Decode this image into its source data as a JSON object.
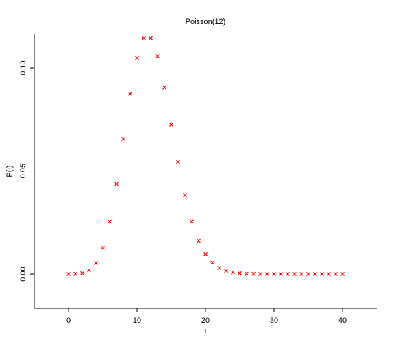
{
  "chart_data": {
    "type": "scatter",
    "title": "Poisson(12)",
    "x_label": "i",
    "y_label": "P(i)",
    "x": [
      0,
      1,
      2,
      3,
      4,
      5,
      6,
      7,
      8,
      9,
      10,
      11,
      12,
      13,
      14,
      15,
      16,
      17,
      18,
      19,
      20,
      21,
      22,
      23,
      24,
      25,
      26,
      27,
      28,
      29,
      30,
      31,
      32,
      33,
      34,
      35,
      36,
      37,
      38,
      39,
      40
    ],
    "values": [
      0.0,
      0.0001,
      0.0004,
      0.0018,
      0.0053,
      0.0127,
      0.0255,
      0.0437,
      0.0655,
      0.0874,
      0.1048,
      0.1144,
      0.1144,
      0.1056,
      0.0905,
      0.0724,
      0.0543,
      0.0383,
      0.0255,
      0.0161,
      0.0097,
      0.0055,
      0.003,
      0.0016,
      0.0008,
      0.0004,
      0.0002,
      0.0001,
      0.0,
      0.0,
      0.0,
      0.0,
      0.0,
      0.0,
      0.0,
      0.0,
      0.0,
      0.0,
      0.0,
      0.0,
      0.0
    ],
    "color": "#ff0000",
    "xlim": [
      -5,
      45
    ],
    "xticks": [
      0,
      10,
      20,
      30,
      40
    ],
    "ylim": [
      -0.0166,
      0.1163
    ],
    "yticks": [
      {
        "value": 0,
        "label": "0.00"
      },
      {
        "value": 0.05,
        "label": "0.05"
      },
      {
        "value": 0.1,
        "label": "0.10"
      }
    ]
  }
}
